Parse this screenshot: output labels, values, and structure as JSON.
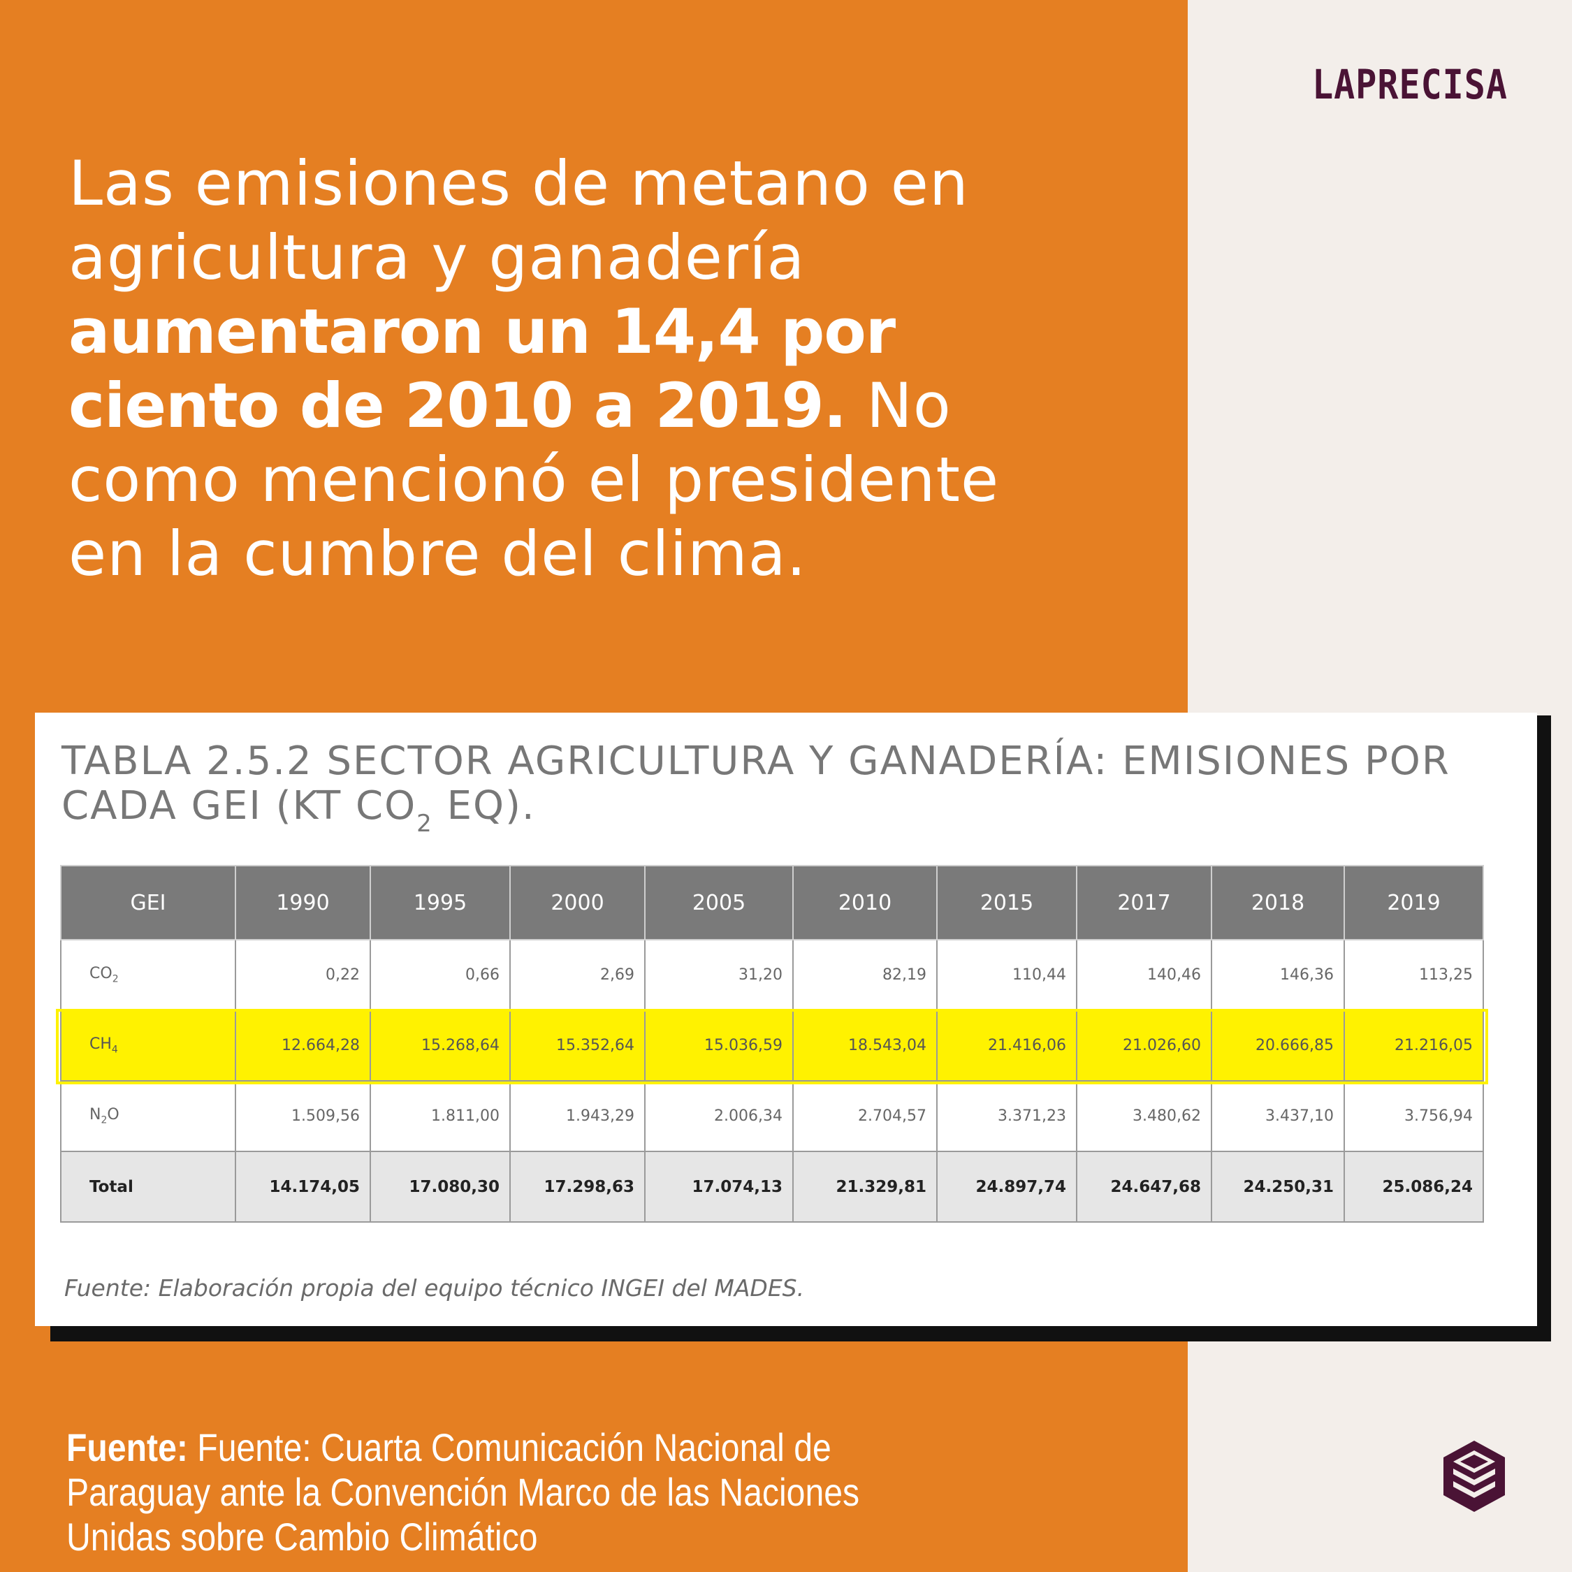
{
  "brand": {
    "name": "LAPRECISA"
  },
  "headline": {
    "part1": "Las emisiones de metano en agricultura y ganadería ",
    "bold": "aumentaron un 14,4 por ciento de 2010 a 2019.",
    "part2": " No como mencionó el presidente en la cumbre del clima."
  },
  "table": {
    "title_main": "TABLA 2.5.2 SECTOR AGRICULTURA Y GANADERÍA: EMISIONES POR CADA GEI (KT CO",
    "title_sub": "2",
    "title_end": " EQ).",
    "columns": [
      "GEI",
      "1990",
      "1995",
      "2000",
      "2005",
      "2010",
      "2015",
      "2017",
      "2018",
      "2019"
    ],
    "rows": [
      {
        "label": "CO",
        "label_sub": "2",
        "values": [
          "0,22",
          "0,66",
          "2,69",
          "31,20",
          "82,19",
          "110,44",
          "140,46",
          "146,36",
          "113,25"
        ]
      },
      {
        "label": "CH",
        "label_sub": "4",
        "values": [
          "12.664,28",
          "15.268,64",
          "15.352,64",
          "15.036,59",
          "18.543,04",
          "21.416,06",
          "21.026,60",
          "20.666,85",
          "21.216,05"
        ]
      },
      {
        "label": "N",
        "label_sub": "2",
        "label_end": "O",
        "values": [
          "1.509,56",
          "1.811,00",
          "1.943,29",
          "2.006,34",
          "2.704,57",
          "3.371,23",
          "3.480,62",
          "3.437,10",
          "3.756,94"
        ]
      },
      {
        "label": "Total",
        "values": [
          "14.174,05",
          "17.080,30",
          "17.298,63",
          "17.074,13",
          "21.329,81",
          "24.897,74",
          "24.647,68",
          "24.250,31",
          "25.086,24"
        ]
      }
    ],
    "source": "Fuente: Elaboración propia del equipo técnico INGEI del MADES."
  },
  "footer": {
    "label": "Fuente:",
    "text": " Fuente: Cuarta Comunicación Nacional de Paraguay ante la Convención Marco de las Naciones Unidas sobre Cambio Climático"
  },
  "colors": {
    "orange": "#e57f22",
    "cream": "#f3eeea",
    "brand": "#4a1335",
    "highlight": "#fff200"
  },
  "icons": {
    "corner_logo": "stacked-cube-icon"
  }
}
